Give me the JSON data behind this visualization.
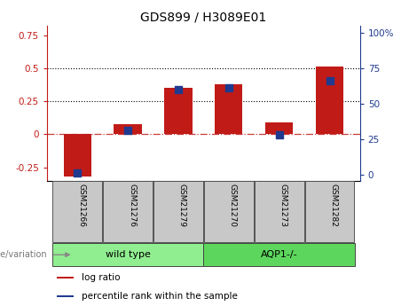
{
  "title": "GDS899 / H3089E01",
  "categories": [
    "GSM21266",
    "GSM21276",
    "GSM21279",
    "GSM21270",
    "GSM21273",
    "GSM21282"
  ],
  "log_ratio": [
    -0.32,
    0.08,
    0.35,
    0.38,
    0.09,
    0.51
  ],
  "percentile_rank": [
    1,
    31,
    60,
    61,
    28,
    66
  ],
  "bar_color": "#C11B17",
  "dot_color": "#1F3A8F",
  "ylim_left": [
    -0.35,
    0.82
  ],
  "ylim_right": [
    -4.375,
    105
  ],
  "yticks_left": [
    -0.25,
    0.0,
    0.25,
    0.5,
    0.75
  ],
  "ytick_labels_left": [
    "-0.25",
    "0",
    "0.25",
    "0.5",
    "0.75"
  ],
  "yticks_right": [
    0,
    25,
    50,
    75,
    100
  ],
  "ytick_labels_right": [
    "0",
    "25",
    "50",
    "75",
    "100%"
  ],
  "hlines": [
    0.25,
    0.5
  ],
  "zero_line": 0.0,
  "groups": [
    {
      "label": "wild type",
      "indices": [
        0,
        1,
        2
      ],
      "color": "#90EE90"
    },
    {
      "label": "AQP1-/-",
      "indices": [
        3,
        4,
        5
      ],
      "color": "#5CD65C"
    }
  ],
  "group_label": "genotype/variation",
  "legend_items": [
    {
      "label": "log ratio",
      "color": "#C11B17"
    },
    {
      "label": "percentile rank within the sample",
      "color": "#1F3A8F"
    }
  ],
  "bar_width": 0.55,
  "background_color": "#ffffff",
  "plot_bg": "#ffffff",
  "title_fontsize": 10,
  "tick_fontsize": 7.5,
  "tick_color_left": "#C11B17",
  "tick_color_right": "#1F3A8F"
}
